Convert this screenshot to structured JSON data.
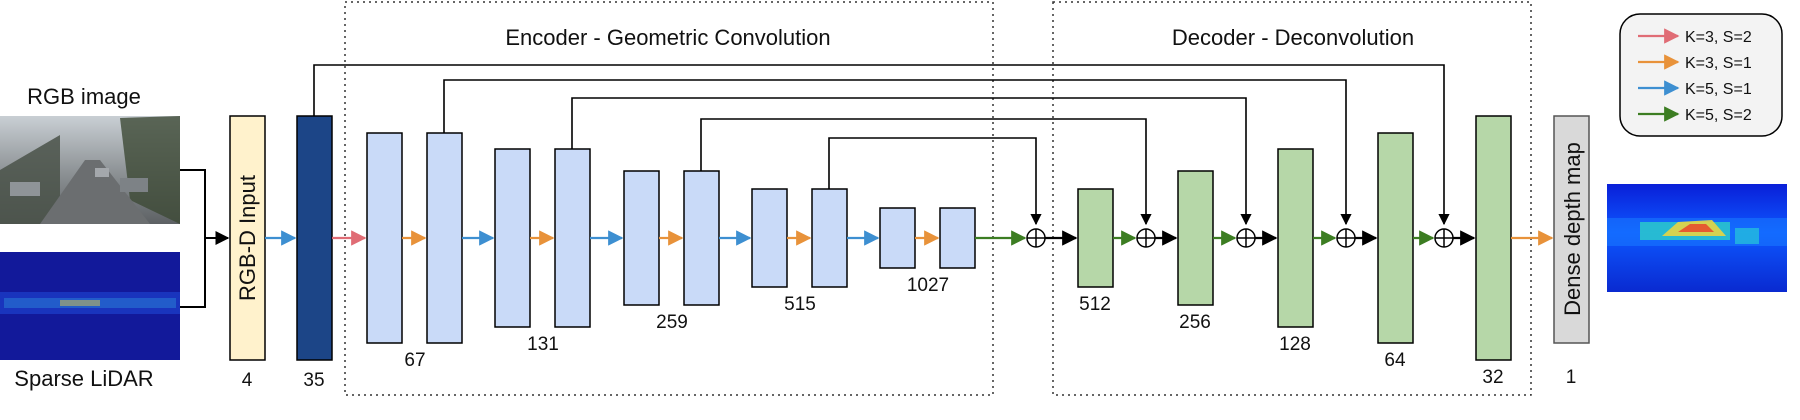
{
  "sections": {
    "encoder_title": "Encoder - Geometric Convolution",
    "decoder_title": "Decoder - Deconvolution"
  },
  "inputs": {
    "rgb_label": "RGB image",
    "lidar_label": "Sparse LiDAR"
  },
  "rgbd": {
    "label": "RGB-D Input",
    "channels": "4"
  },
  "first_layer": {
    "channels": "35"
  },
  "encoder": [
    {
      "channels": "67"
    },
    {
      "channels": "131"
    },
    {
      "channels": "259"
    },
    {
      "channels": "515"
    },
    {
      "channels": "1027"
    }
  ],
  "decoder": [
    {
      "channels": "512"
    },
    {
      "channels": "256"
    },
    {
      "channels": "128"
    },
    {
      "channels": "64"
    },
    {
      "channels": "32"
    }
  ],
  "output": {
    "label": "Dense depth map",
    "channels": "1"
  },
  "legend": [
    {
      "label": "K=3, S=2",
      "color": "#e06c75"
    },
    {
      "label": "K=3, S=1",
      "color": "#e8923a"
    },
    {
      "label": "K=5, S=1",
      "color": "#3d8fd1"
    },
    {
      "label": "K=5, S=2",
      "color": "#3c7d22"
    }
  ],
  "colors": {
    "encoder_block": "#c9daf8",
    "decoder_block": "#b6d7a8",
    "first_layer": "#1c4587",
    "rgbd_block": "#fff2cc",
    "output_block": "#d9d9d9",
    "legend_bg": "#f3f3f3"
  }
}
